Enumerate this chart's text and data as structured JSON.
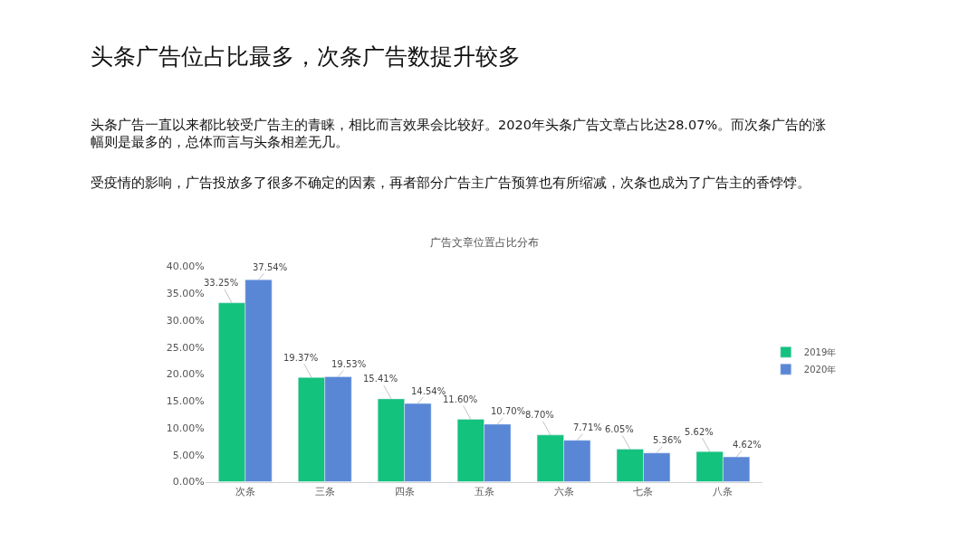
{
  "chart_data": {
    "type": "bar",
    "title": "头条广告位占比最多，次条广告数提升较多",
    "subtitle": "广告文章位置占比分布",
    "annotations": [
      "头条广告一直以来都比较受广告主的青睐，相比而言效果会比较好。2020年头条广告文章占比达28.07%。而次条广告的涨幅则是最多的，总体而言与头条相差无几。",
      "受疫情的影响，广告投放多了很多不确定的因素，再者部分广告主广告预算也有所缩减，次条也成为了广告主的香饽饽。"
    ],
    "categories": [
      "次条",
      "三条",
      "四条",
      "五条",
      "六条",
      "七条",
      "八条"
    ],
    "series": [
      {
        "name": "2019年",
        "color": "#13c27d",
        "values": [
          33.25,
          19.37,
          15.41,
          11.6,
          8.7,
          6.05,
          5.62
        ],
        "value_labels": [
          "33.25%",
          "19.37%",
          "15.41%",
          "11.60%",
          "8.70%",
          "6.05%",
          "5.62%"
        ]
      },
      {
        "name": "2020年",
        "color": "#5987d6",
        "values": [
          37.54,
          19.53,
          14.54,
          10.7,
          7.71,
          5.36,
          4.62
        ],
        "value_labels": [
          "37.54%",
          "19.53%",
          "14.54%",
          "10.70%",
          "7.71%",
          "5.36%",
          "4.62%"
        ]
      }
    ],
    "ylim": [
      0,
      40
    ],
    "yticks": [
      {
        "value": 0,
        "label": "0.00%"
      },
      {
        "value": 5,
        "label": "5.00%"
      },
      {
        "value": 10,
        "label": "10.00%"
      },
      {
        "value": 15,
        "label": "15.00%"
      },
      {
        "value": 20,
        "label": "20.00%"
      },
      {
        "value": 25,
        "label": "25.00%"
      },
      {
        "value": 30,
        "label": "30.00%"
      },
      {
        "value": 35,
        "label": "35.00%"
      },
      {
        "value": 40,
        "label": "40.00%"
      }
    ],
    "legend": "right"
  }
}
